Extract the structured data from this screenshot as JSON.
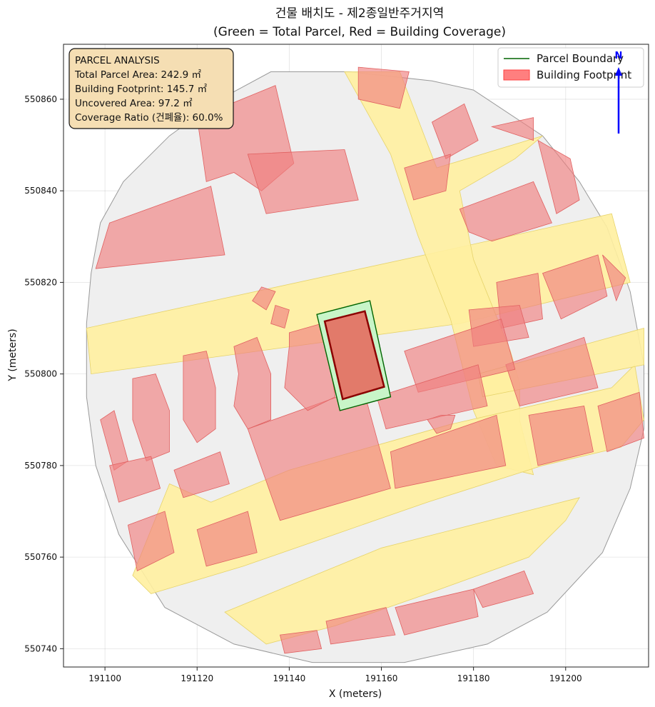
{
  "title": {
    "line1": "건물 배치도 - 제2종일반주거지역",
    "line2": "(Green = Total Parcel, Red = Building Coverage)"
  },
  "axes": {
    "xlabel": "X (meters)",
    "ylabel": "Y (meters)",
    "xlim": [
      191091,
      191218
    ],
    "ylim": [
      550736,
      550872
    ],
    "xticks": [
      191100,
      191120,
      191140,
      191160,
      191180,
      191200
    ],
    "yticks": [
      550740,
      550760,
      550780,
      550800,
      550820,
      550840,
      550860
    ],
    "xtick_labels": [
      "191100",
      "191120",
      "191140",
      "191160",
      "191180",
      "191200"
    ],
    "ytick_labels": [
      "550740",
      "550760",
      "550780",
      "550800",
      "550820",
      "550840",
      "550860"
    ],
    "grid": true
  },
  "info_box": {
    "heading": "PARCEL ANALYSIS",
    "total_area": "Total Parcel Area: 242.9 ㎡",
    "footprint": "Building Footprint: 145.7 ㎡",
    "uncovered": "Uncovered Area: 97.2 ㎡",
    "ratio": "Coverage Ratio (건폐율): 60.0%"
  },
  "legend": {
    "placement": "top-right",
    "parcel_label": "Parcel Boundary",
    "building_label": "Building Footprint"
  },
  "north_label": "N",
  "colors": {
    "parcel_fill": "#c8f5c8",
    "parcel_edge": "#006400",
    "building_fill": "#e27a6a",
    "building_edge": "#8b0000",
    "context_building": "#f08080",
    "road": "#fff0a0",
    "block": "#efefef",
    "north_arrow": "#0000ff"
  },
  "chart_data": {
    "type": "map",
    "target_parcel": {
      "polygon": [
        [
          191146,
          550813
        ],
        [
          191157.5,
          550816
        ],
        [
          191162,
          550795
        ],
        [
          191151,
          550792
        ]
      ]
    },
    "target_building": {
      "polygon": [
        [
          191147.7,
          550811.5
        ],
        [
          191156.4,
          550813.7
        ],
        [
          191160.6,
          550797.2
        ],
        [
          191151.6,
          550794.5
        ]
      ]
    },
    "site_boundary": [
      [
        191136,
        550866
      ],
      [
        191153,
        550866
      ],
      [
        191171,
        550864
      ],
      [
        191180,
        550862
      ],
      [
        191195,
        550852
      ],
      [
        191203,
        550842
      ],
      [
        191209,
        550832
      ],
      [
        191214,
        550818
      ],
      [
        191217,
        550802
      ],
      [
        191217,
        550788
      ],
      [
        191214,
        550775
      ],
      [
        191208,
        550761
      ],
      [
        191196,
        550748
      ],
      [
        191183,
        550741
      ],
      [
        191165,
        550737
      ],
      [
        191145,
        550737
      ],
      [
        191128,
        550741
      ],
      [
        191113,
        550749
      ],
      [
        191103,
        550765
      ],
      [
        191098,
        550780
      ],
      [
        191096,
        550795
      ],
      [
        191096,
        550811
      ],
      [
        191097,
        550822
      ],
      [
        191099,
        550833
      ],
      [
        191104,
        550842
      ],
      [
        191114,
        550852
      ],
      [
        191125,
        550860
      ]
    ],
    "roads": [
      [
        [
          191096,
          550810
        ],
        [
          191174,
          550827
        ],
        [
          191210,
          550835
        ],
        [
          191214,
          550820
        ],
        [
          191177,
          550811
        ],
        [
          191097,
          550800
        ]
      ],
      [
        [
          191152,
          550866
        ],
        [
          191164,
          550866
        ],
        [
          191172,
          550845
        ],
        [
          191195,
          550852
        ],
        [
          191189,
          550847
        ],
        [
          191177,
          550840
        ],
        [
          191180,
          550825
        ],
        [
          191188,
          550805
        ],
        [
          191190,
          550798
        ],
        [
          191190,
          550790
        ],
        [
          191193,
          550778
        ],
        [
          191185,
          550780
        ],
        [
          191180,
          550792
        ],
        [
          191175,
          550812
        ],
        [
          191168,
          550830
        ],
        [
          191162,
          550848
        ]
      ],
      [
        [
          191114,
          550776
        ],
        [
          191123,
          550772
        ],
        [
          191140,
          550779
        ],
        [
          191175,
          550789
        ],
        [
          191210,
          550797
        ],
        [
          191215,
          550802
        ],
        [
          191217,
          550790
        ],
        [
          191212,
          550784
        ],
        [
          191195,
          550780
        ],
        [
          191170,
          550772
        ],
        [
          191150,
          550765
        ],
        [
          191130,
          550758
        ],
        [
          191110,
          550752
        ],
        [
          191106,
          550756
        ]
      ],
      [
        [
          191181,
          550800
        ],
        [
          191217,
          550810
        ],
        [
          191217,
          550802
        ],
        [
          191182,
          550795
        ]
      ],
      [
        [
          191126,
          550748
        ],
        [
          191160,
          550762
        ],
        [
          191203,
          550773
        ],
        [
          191200,
          550768
        ],
        [
          191192,
          550760
        ],
        [
          191170,
          550752
        ],
        [
          191150,
          550745
        ],
        [
          191135,
          550741
        ]
      ]
    ],
    "context_buildings": [
      [
        [
          191101,
          550833
        ],
        [
          191123,
          550841
        ],
        [
          191126,
          550826
        ],
        [
          191098,
          550823
        ]
      ],
      [
        [
          191120,
          550856
        ],
        [
          191137,
          550863
        ],
        [
          191141,
          550846
        ],
        [
          191134,
          550840
        ],
        [
          191128,
          550844
        ],
        [
          191122,
          550842
        ]
      ],
      [
        [
          191131,
          550848
        ],
        [
          191152,
          550849
        ],
        [
          191155,
          550838
        ],
        [
          191135,
          550835
        ]
      ],
      [
        [
          191155,
          550867
        ],
        [
          191166,
          550866
        ],
        [
          191164,
          550858
        ],
        [
          191155,
          550860
        ]
      ],
      [
        [
          191171,
          550855
        ],
        [
          191178,
          550859
        ],
        [
          191181,
          550851
        ],
        [
          191174,
          550847
        ]
      ],
      [
        [
          191165,
          550845
        ],
        [
          191175,
          550848
        ],
        [
          191174,
          550840
        ],
        [
          191167,
          550838
        ]
      ],
      [
        [
          191177,
          550836
        ],
        [
          191193,
          550842
        ],
        [
          191197,
          550833
        ],
        [
          191184,
          550829
        ],
        [
          191179,
          550831
        ]
      ],
      [
        [
          191184,
          550854
        ],
        [
          191193,
          550856
        ],
        [
          191193,
          550851
        ]
      ],
      [
        [
          191194,
          550851
        ],
        [
          191201,
          550847
        ],
        [
          191203,
          550838
        ],
        [
          191198,
          550835
        ]
      ],
      [
        [
          191185,
          550820
        ],
        [
          191194,
          550822
        ],
        [
          191195,
          550812
        ],
        [
          191186,
          550810
        ]
      ],
      [
        [
          191195,
          550822
        ],
        [
          191207,
          550826
        ],
        [
          191209,
          550817
        ],
        [
          191199,
          550812
        ]
      ],
      [
        [
          191208,
          550826
        ],
        [
          191213,
          550821
        ],
        [
          191211,
          550816
        ]
      ],
      [
        [
          191179,
          550814
        ],
        [
          191190,
          550815
        ],
        [
          191192,
          550808
        ],
        [
          191180,
          550806
        ]
      ],
      [
        [
          191187,
          550802
        ],
        [
          191204,
          550808
        ],
        [
          191207,
          550797
        ],
        [
          191190,
          550793
        ]
      ],
      [
        [
          191192,
          550791
        ],
        [
          191204,
          550793
        ],
        [
          191206,
          550783
        ],
        [
          191194,
          550780
        ]
      ],
      [
        [
          191207,
          550793
        ],
        [
          191216,
          550796
        ],
        [
          191217,
          550786
        ],
        [
          191209,
          550783
        ]
      ],
      [
        [
          191165,
          550805
        ],
        [
          191186,
          550812
        ],
        [
          191189,
          550801
        ],
        [
          191168,
          550796
        ]
      ],
      [
        [
          191159,
          550795
        ],
        [
          191181,
          550802
        ],
        [
          191183,
          550793
        ],
        [
          191161,
          550788
        ]
      ],
      [
        [
          191170,
          550790
        ],
        [
          191173,
          550791
        ],
        [
          191176,
          550791
        ],
        [
          191175,
          550788
        ],
        [
          191172,
          550787
        ]
      ],
      [
        [
          191162,
          550783
        ],
        [
          191185,
          550791
        ],
        [
          191187,
          550780
        ],
        [
          191163,
          550775
        ]
      ],
      [
        [
          191131,
          550788
        ],
        [
          191156,
          550797
        ],
        [
          191162,
          550775
        ],
        [
          191138,
          550768
        ]
      ],
      [
        [
          191140,
          550809
        ],
        [
          191147,
          550811
        ],
        [
          191148,
          550807
        ],
        [
          191150,
          550795
        ],
        [
          191144,
          550792
        ],
        [
          191139,
          550797
        ],
        [
          191140,
          550806
        ]
      ],
      [
        [
          191128,
          550806
        ],
        [
          191133,
          550808
        ],
        [
          191136,
          550800
        ],
        [
          191136,
          550790
        ],
        [
          191131,
          550788
        ],
        [
          191128,
          550793
        ],
        [
          191129,
          550800
        ]
      ],
      [
        [
          191117,
          550804
        ],
        [
          191122,
          550805
        ],
        [
          191124,
          550797
        ],
        [
          191124,
          550788
        ],
        [
          191120,
          550785
        ],
        [
          191117,
          550790
        ]
      ],
      [
        [
          191106,
          550799
        ],
        [
          191111,
          550800
        ],
        [
          191114,
          550792
        ],
        [
          191114,
          550783
        ],
        [
          191109,
          550781
        ],
        [
          191106,
          550790
        ]
      ],
      [
        [
          191099,
          550790
        ],
        [
          191102,
          550792
        ],
        [
          191105,
          550781
        ],
        [
          191102,
          550779
        ]
      ],
      [
        [
          191101,
          550780
        ],
        [
          191110,
          550782
        ],
        [
          191112,
          550775
        ],
        [
          191103,
          550772
        ]
      ],
      [
        [
          191115,
          550779
        ],
        [
          191125,
          550783
        ],
        [
          191127,
          550776
        ],
        [
          191117,
          550773
        ]
      ],
      [
        [
          191120,
          550766
        ],
        [
          191131,
          550770
        ],
        [
          191133,
          550761
        ],
        [
          191122,
          550758
        ]
      ],
      [
        [
          191105,
          550767
        ],
        [
          191113,
          550770
        ],
        [
          191115,
          550761
        ],
        [
          191107,
          550757
        ]
      ],
      [
        [
          191136,
          550811
        ],
        [
          191137,
          550815
        ],
        [
          191140,
          550814
        ],
        [
          191139,
          550810
        ]
      ],
      [
        [
          191132,
          550816
        ],
        [
          191134,
          550819
        ],
        [
          191137,
          550818
        ],
        [
          191135,
          550814
        ]
      ],
      [
        [
          191148,
          550746
        ],
        [
          191161,
          550749
        ],
        [
          191163,
          550743
        ],
        [
          191149,
          550741
        ]
      ],
      [
        [
          191163,
          550749
        ],
        [
          191180,
          550753
        ],
        [
          191181,
          550747
        ],
        [
          191165,
          550743
        ]
      ],
      [
        [
          191180,
          550753
        ],
        [
          191191,
          550757
        ],
        [
          191193,
          550752
        ],
        [
          191182,
          550749
        ]
      ],
      [
        [
          191138,
          550743
        ],
        [
          191146,
          550744
        ],
        [
          191147,
          550740
        ],
        [
          191139,
          550739
        ]
      ]
    ]
  }
}
